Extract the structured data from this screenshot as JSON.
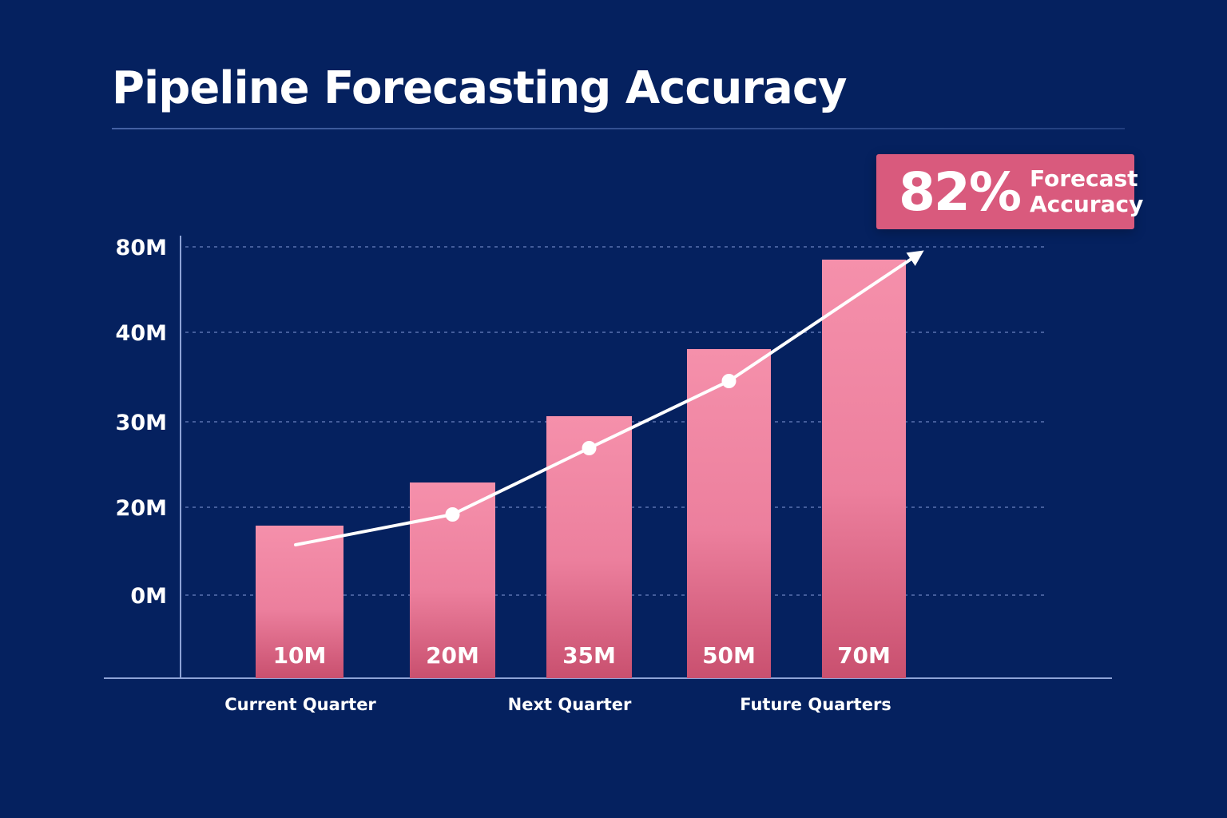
{
  "title": "Pipeline Forecasting Accuracy",
  "callout": {
    "value": "82%",
    "label": "Forecast Accuracy"
  },
  "colors": {
    "background": "#05215f",
    "bar": "#f28aa6",
    "bar_dark": "#c4466f",
    "callout": "#d95a7d",
    "trend": "#ffffff"
  },
  "chart_data": {
    "type": "bar",
    "title": "Pipeline Forecasting Accuracy",
    "values": [
      10,
      20,
      35,
      50,
      70
    ],
    "bar_labels": [
      "10M",
      "20M",
      "35M",
      "50M",
      "70M"
    ],
    "y_ticks": [
      "0M",
      "20M",
      "30M",
      "40M",
      "80M"
    ],
    "x_group_labels": [
      "Current Quarter",
      "Next Quarter",
      "Future Quarters"
    ],
    "trend_line": {
      "shown": true,
      "arrow_end": true
    },
    "grid": "dashed horizontal",
    "legend": "none"
  }
}
